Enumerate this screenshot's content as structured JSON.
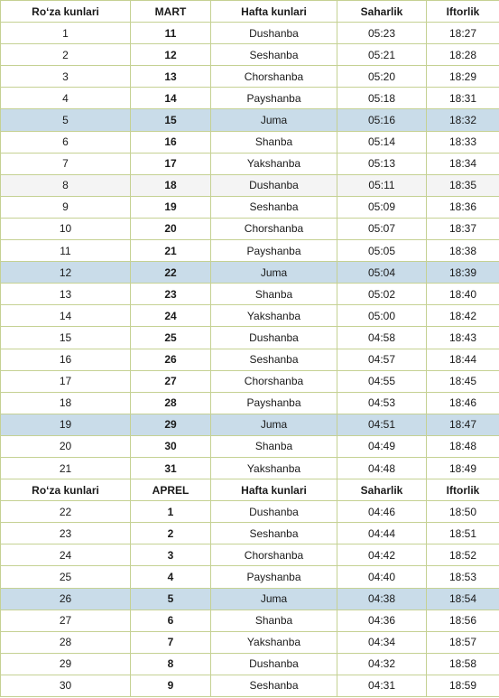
{
  "headers": {
    "mart": [
      "Ro‘za kunlari",
      "MART",
      "Hafta kunlari",
      "Saharlik",
      "Iftorlik"
    ],
    "aprel": [
      "Ro‘za kunlari",
      "APREL",
      "Hafta kunlari",
      "Saharlik",
      "Iftorlik"
    ]
  },
  "colors": {
    "border": "#c5d193",
    "friday_highlight": "#c9dce9",
    "alt_row": "#f4f4f4"
  },
  "mart_rows": [
    {
      "day": "1",
      "date": "11",
      "weekday": "Dushanba",
      "saharlik": "05:23",
      "iftorlik": "18:27"
    },
    {
      "day": "2",
      "date": "12",
      "weekday": "Seshanba",
      "saharlik": "05:21",
      "iftorlik": "18:28"
    },
    {
      "day": "3",
      "date": "13",
      "weekday": "Chorshanba",
      "saharlik": "05:20",
      "iftorlik": "18:29"
    },
    {
      "day": "4",
      "date": "14",
      "weekday": "Payshanba",
      "saharlik": "05:18",
      "iftorlik": "18:31"
    },
    {
      "day": "5",
      "date": "15",
      "weekday": "Juma",
      "saharlik": "05:16",
      "iftorlik": "18:32"
    },
    {
      "day": "6",
      "date": "16",
      "weekday": "Shanba",
      "saharlik": "05:14",
      "iftorlik": "18:33"
    },
    {
      "day": "7",
      "date": "17",
      "weekday": "Yakshanba",
      "saharlik": "05:13",
      "iftorlik": "18:34"
    },
    {
      "day": "8",
      "date": "18",
      "weekday": "Dushanba",
      "saharlik": "05:11",
      "iftorlik": "18:35"
    },
    {
      "day": "9",
      "date": "19",
      "weekday": "Seshanba",
      "saharlik": "05:09",
      "iftorlik": "18:36"
    },
    {
      "day": "10",
      "date": "20",
      "weekday": "Chorshanba",
      "saharlik": "05:07",
      "iftorlik": "18:37"
    },
    {
      "day": "11",
      "date": "21",
      "weekday": "Payshanba",
      "saharlik": "05:05",
      "iftorlik": "18:38"
    },
    {
      "day": "12",
      "date": "22",
      "weekday": "Juma",
      "saharlik": "05:04",
      "iftorlik": "18:39"
    },
    {
      "day": "13",
      "date": "23",
      "weekday": "Shanba",
      "saharlik": "05:02",
      "iftorlik": "18:40"
    },
    {
      "day": "14",
      "date": "24",
      "weekday": "Yakshanba",
      "saharlik": "05:00",
      "iftorlik": "18:42"
    },
    {
      "day": "15",
      "date": "25",
      "weekday": "Dushanba",
      "saharlik": "04:58",
      "iftorlik": "18:43"
    },
    {
      "day": "16",
      "date": "26",
      "weekday": "Seshanba",
      "saharlik": "04:57",
      "iftorlik": "18:44"
    },
    {
      "day": "17",
      "date": "27",
      "weekday": "Chorshanba",
      "saharlik": "04:55",
      "iftorlik": "18:45"
    },
    {
      "day": "18",
      "date": "28",
      "weekday": "Payshanba",
      "saharlik": "04:53",
      "iftorlik": "18:46"
    },
    {
      "day": "19",
      "date": "29",
      "weekday": "Juma",
      "saharlik": "04:51",
      "iftorlik": "18:47"
    },
    {
      "day": "20",
      "date": "30",
      "weekday": "Shanba",
      "saharlik": "04:49",
      "iftorlik": "18:48"
    },
    {
      "day": "21",
      "date": "31",
      "weekday": "Yakshanba",
      "saharlik": "04:48",
      "iftorlik": "18:49"
    }
  ],
  "aprel_rows": [
    {
      "day": "22",
      "date": "1",
      "weekday": "Dushanba",
      "saharlik": "04:46",
      "iftorlik": "18:50"
    },
    {
      "day": "23",
      "date": "2",
      "weekday": "Seshanba",
      "saharlik": "04:44",
      "iftorlik": "18:51"
    },
    {
      "day": "24",
      "date": "3",
      "weekday": "Chorshanba",
      "saharlik": "04:42",
      "iftorlik": "18:52"
    },
    {
      "day": "25",
      "date": "4",
      "weekday": "Payshanba",
      "saharlik": "04:40",
      "iftorlik": "18:53"
    },
    {
      "day": "26",
      "date": "5",
      "weekday": "Juma",
      "saharlik": "04:38",
      "iftorlik": "18:54"
    },
    {
      "day": "27",
      "date": "6",
      "weekday": "Shanba",
      "saharlik": "04:36",
      "iftorlik": "18:56"
    },
    {
      "day": "28",
      "date": "7",
      "weekday": "Yakshanba",
      "saharlik": "04:34",
      "iftorlik": "18:57"
    },
    {
      "day": "29",
      "date": "8",
      "weekday": "Dushanba",
      "saharlik": "04:32",
      "iftorlik": "18:58"
    },
    {
      "day": "30",
      "date": "9",
      "weekday": "Seshanba",
      "saharlik": "04:31",
      "iftorlik": "18:59"
    }
  ]
}
